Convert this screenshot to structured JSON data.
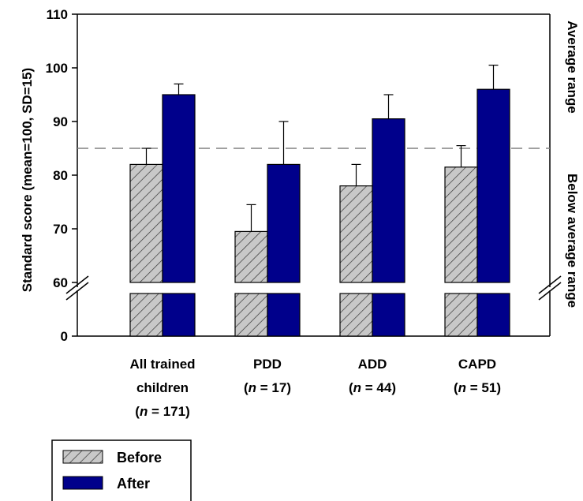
{
  "chart_data": {
    "type": "bar",
    "ylabel": "Standard score (mean=100, SD=15)",
    "y_ticks": [
      "110",
      "100",
      "90",
      "80",
      "70",
      "60",
      "0"
    ],
    "ylim_upper": [
      60,
      110
    ],
    "axis_break": "between 0 and 60",
    "reference_line": {
      "value": 85,
      "style": "dashed"
    },
    "right_labels": {
      "above": "Average range",
      "below": "Below average range"
    },
    "categories": [
      {
        "line1": "All trained",
        "line2": "children",
        "n_text": "= 171)"
      },
      {
        "line1": "PDD",
        "line2": "",
        "n_text": "= 17)"
      },
      {
        "line1": "ADD",
        "line2": "",
        "n_text": "= 44)"
      },
      {
        "line1": "CAPD",
        "line2": "",
        "n_text": "= 51)"
      }
    ],
    "n_prefix": "(",
    "n_symbol": "n",
    "series": [
      {
        "name": "Before",
        "values": [
          82,
          69.5,
          78,
          81.5
        ],
        "error_plus": [
          3,
          5,
          4,
          4
        ],
        "fill": "hatched-gray"
      },
      {
        "name": "After",
        "values": [
          95,
          82,
          90.5,
          96
        ],
        "error_plus": [
          2,
          8,
          4.5,
          4.5
        ],
        "fill": "#00008b"
      }
    ],
    "legend": {
      "placement": "bottom-left",
      "items": [
        "Before",
        "After"
      ]
    },
    "colors": {
      "after": "#00008b",
      "before": "#c8c8c8",
      "hatch": "#333333"
    }
  }
}
